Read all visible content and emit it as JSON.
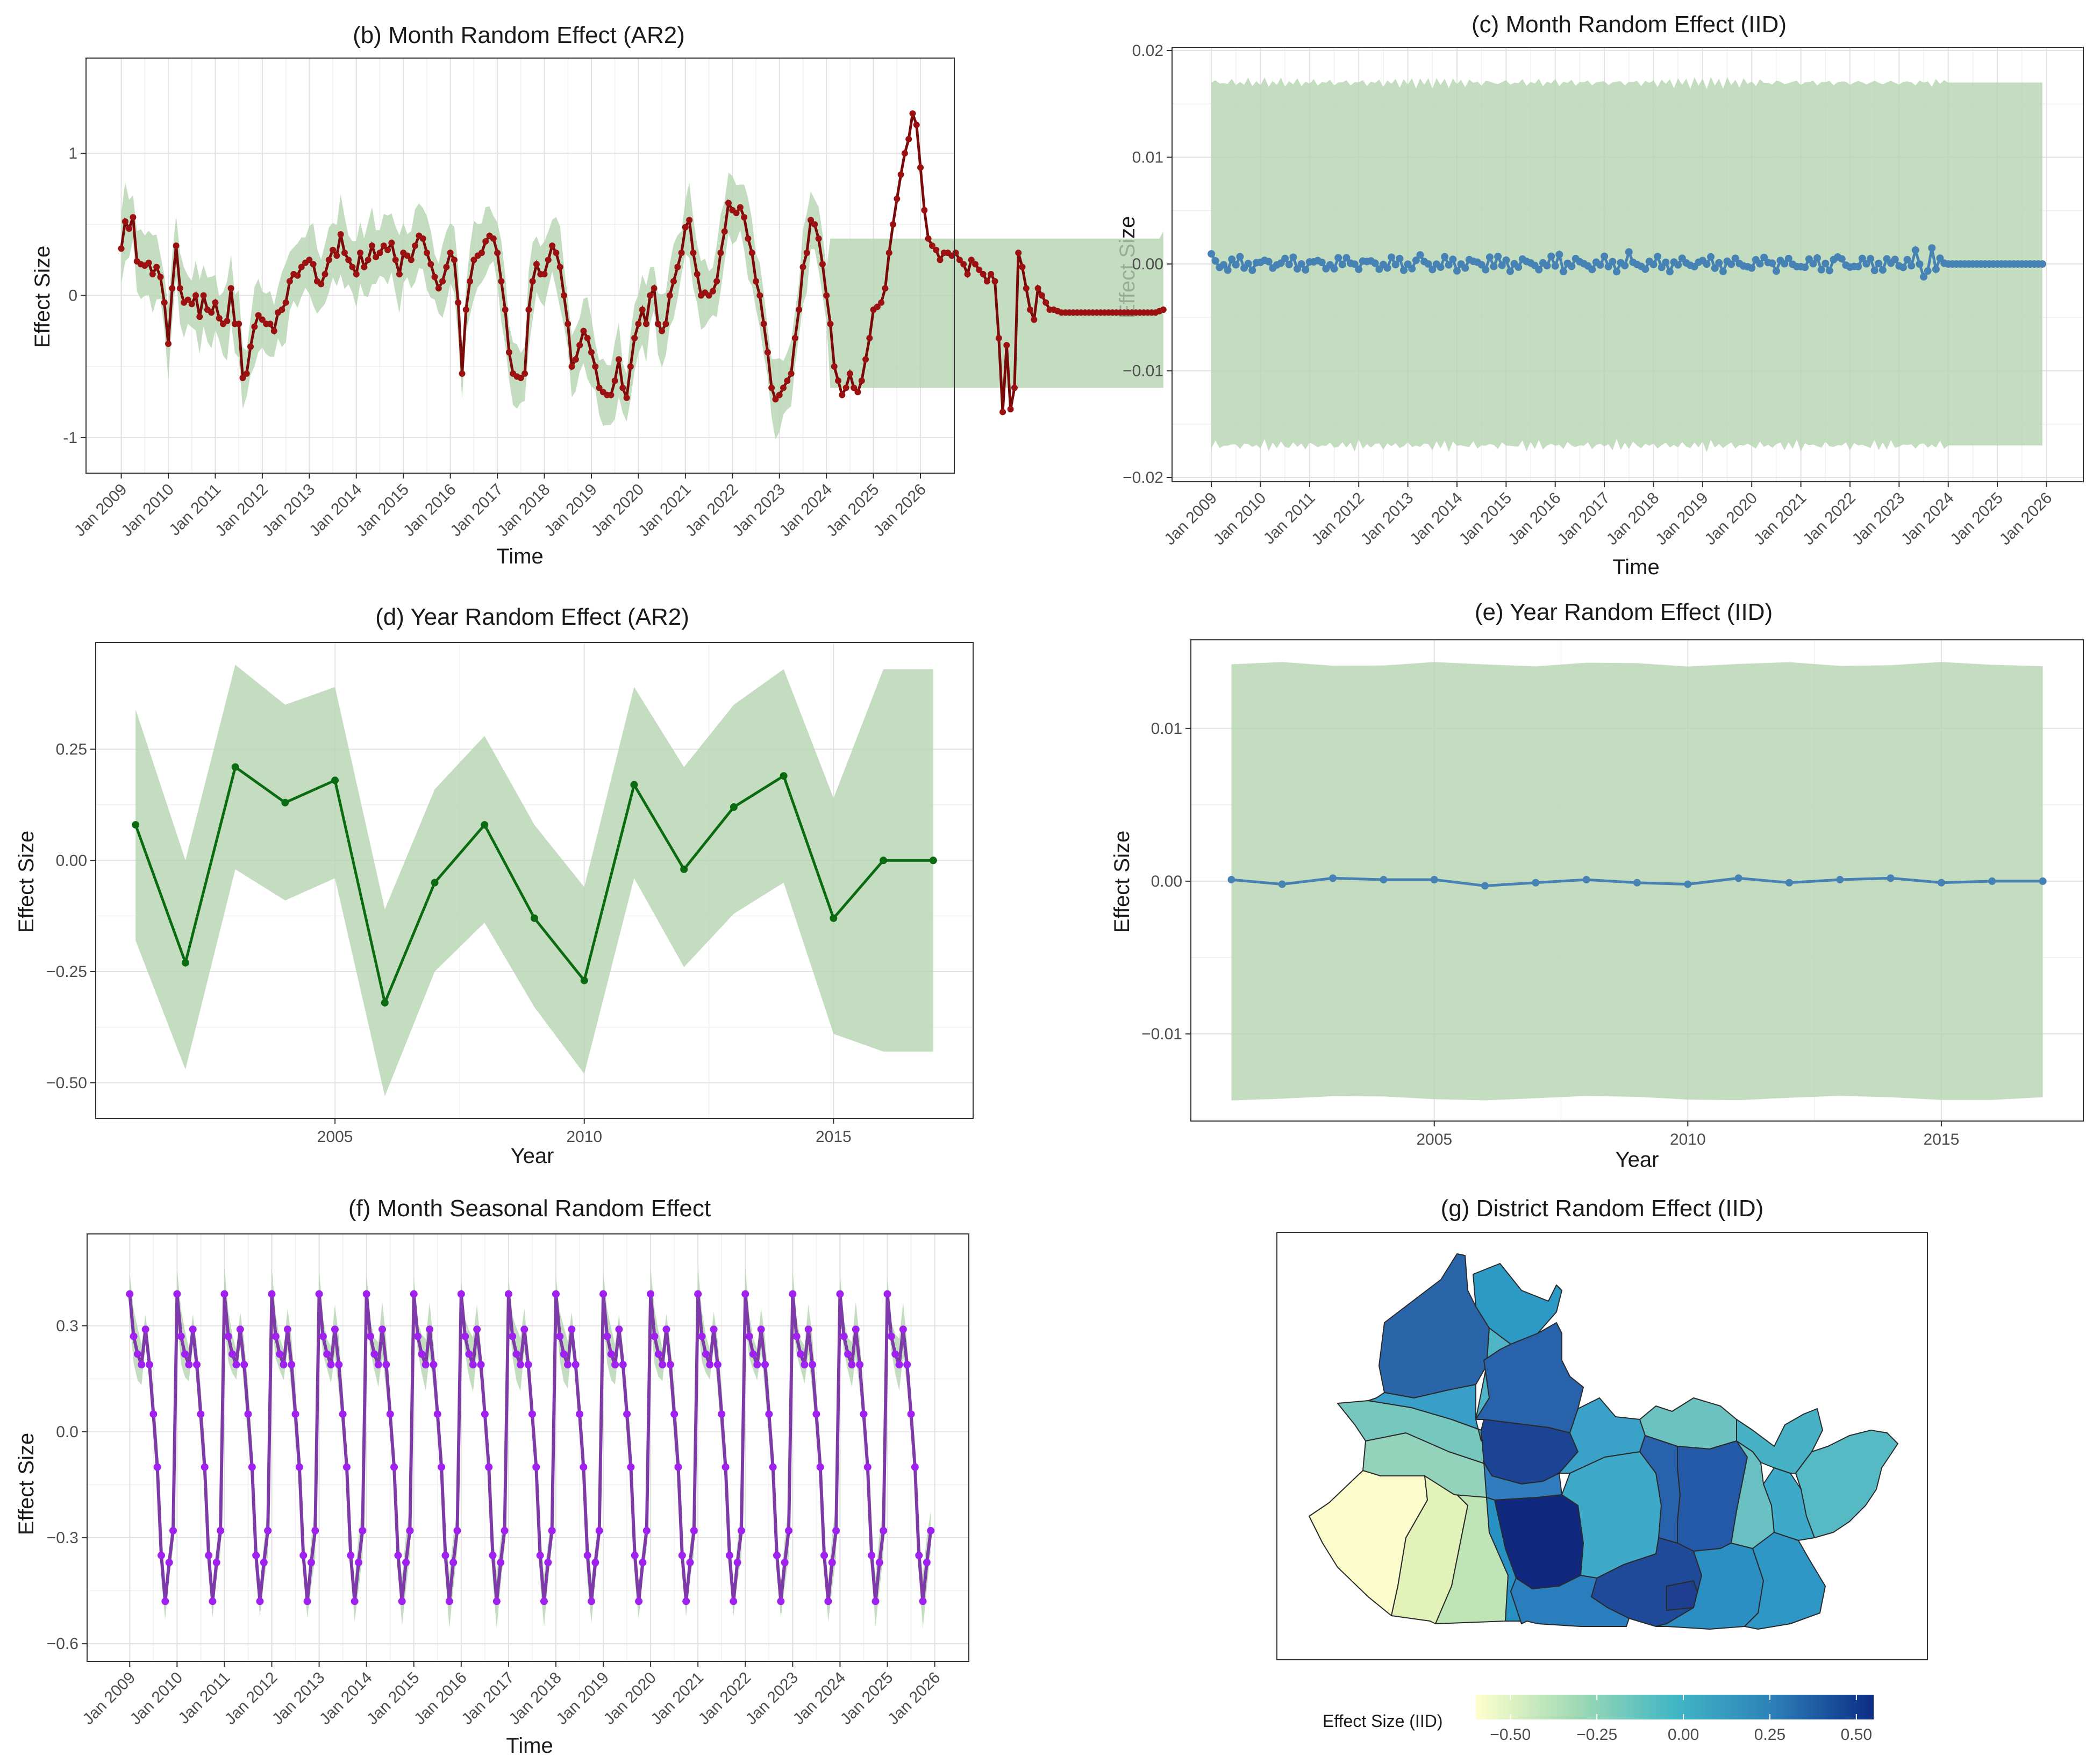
{
  "colors": {
    "band": "#b5d4b0",
    "ar2_month": "#7a0a0a",
    "iid": "#4682b4",
    "ar2_year": "#0b6b10",
    "seasonal": "#a020f0",
    "seasonal_line": "#7d3aa8",
    "map_low": "#ffffcc",
    "map_mid": "#41b6c4",
    "map_high": "#0c2c84"
  },
  "chart_data": [
    {
      "id": "b",
      "type": "line",
      "title": "(b) Month Random Effect (AR2)",
      "xlabel": "Time",
      "ylabel": "Effect Size",
      "x_ticks": [
        "Jan 2009",
        "Jan 2010",
        "Jan 2011",
        "Jan 2012",
        "Jan 2013",
        "Jan 2014",
        "Jan 2015",
        "Jan 2016",
        "Jan 2017",
        "Jan 2018",
        "Jan 2019",
        "Jan 2020",
        "Jan 2021",
        "Jan 2022",
        "Jan 2023",
        "Jan 2024",
        "Jan 2025",
        "Jan 2026"
      ],
      "y_ticks": [
        "-1",
        "0",
        "1"
      ],
      "ylim": [
        -1.25,
        1.67
      ],
      "x_start": 2009.0,
      "x_step": 0.0833333,
      "xlim": [
        2008.25,
        2026.72
      ],
      "values": [
        0.33,
        0.52,
        0.47,
        0.55,
        0.24,
        0.22,
        0.21,
        0.23,
        0.15,
        0.2,
        0.13,
        -0.05,
        -0.34,
        0.05,
        0.35,
        0.05,
        -0.05,
        -0.03,
        -0.06,
        0.0,
        -0.15,
        0.0,
        -0.1,
        -0.12,
        -0.05,
        -0.16,
        -0.2,
        -0.18,
        0.05,
        -0.2,
        -0.2,
        -0.58,
        -0.55,
        -0.36,
        -0.22,
        -0.14,
        -0.17,
        -0.2,
        -0.2,
        -0.25,
        -0.12,
        -0.1,
        -0.05,
        0.1,
        0.15,
        0.14,
        0.2,
        0.23,
        0.25,
        0.22,
        0.1,
        0.08,
        0.15,
        0.25,
        0.32,
        0.28,
        0.43,
        0.3,
        0.25,
        0.2,
        0.15,
        0.3,
        0.2,
        0.25,
        0.35,
        0.27,
        0.3,
        0.35,
        0.32,
        0.37,
        0.25,
        0.15,
        0.3,
        0.28,
        0.25,
        0.35,
        0.42,
        0.4,
        0.3,
        0.22,
        0.13,
        0.05,
        0.1,
        0.2,
        0.3,
        0.25,
        -0.05,
        -0.55,
        -0.1,
        0.1,
        0.25,
        0.28,
        0.3,
        0.38,
        0.42,
        0.4,
        0.3,
        0.1,
        -0.1,
        -0.4,
        -0.55,
        -0.57,
        -0.58,
        -0.55,
        -0.1,
        0.1,
        0.22,
        0.15,
        0.15,
        0.25,
        0.35,
        0.3,
        0.2,
        0.0,
        -0.2,
        -0.5,
        -0.45,
        -0.35,
        -0.25,
        -0.3,
        -0.4,
        -0.5,
        -0.65,
        -0.68,
        -0.7,
        -0.7,
        -0.6,
        -0.45,
        -0.65,
        -0.72,
        -0.5,
        -0.3,
        -0.2,
        -0.1,
        -0.2,
        0.0,
        0.05,
        -0.2,
        -0.25,
        -0.2,
        0.0,
        0.1,
        0.2,
        0.3,
        0.48,
        0.53,
        0.3,
        0.15,
        0.0,
        0.02,
        0.0,
        0.03,
        0.1,
        0.3,
        0.45,
        0.65,
        0.6,
        0.58,
        0.62,
        0.55,
        0.4,
        0.3,
        0.1,
        0.0,
        -0.2,
        -0.4,
        -0.65,
        -0.73,
        -0.7,
        -0.65,
        -0.6,
        -0.55,
        -0.3,
        -0.1,
        0.2,
        0.3,
        0.53,
        0.5,
        0.4,
        0.22,
        0.0,
        -0.2,
        -0.5,
        -0.6,
        -0.7,
        -0.65,
        -0.55,
        -0.65,
        -0.68,
        -0.6,
        -0.45,
        -0.3,
        -0.1,
        -0.08,
        -0.05,
        0.05,
        0.3,
        0.5,
        0.68,
        0.85,
        1.0,
        1.1,
        1.28,
        1.2,
        0.9,
        0.6,
        0.4,
        0.35,
        0.32,
        0.25,
        0.3,
        0.3,
        0.28,
        0.3,
        0.25,
        0.22,
        0.15,
        0.25,
        0.22,
        0.18,
        0.15,
        0.1,
        0.15,
        0.1,
        -0.3,
        -0.82,
        -0.35,
        -0.8,
        -0.65,
        0.3,
        0.2,
        0.05,
        -0.1,
        -0.17,
        0.05,
        0.0,
        -0.05,
        -0.1,
        -0.1,
        -0.11,
        -0.12,
        -0.12,
        -0.12,
        -0.12,
        -0.12,
        -0.12,
        -0.12,
        -0.12,
        -0.12,
        -0.12,
        -0.12,
        -0.12,
        -0.12,
        -0.12,
        -0.12,
        -0.12,
        -0.12,
        -0.12,
        -0.12,
        -0.12,
        -0.12,
        -0.12,
        -0.12,
        -0.12,
        -0.12,
        -0.11,
        -0.1
      ],
      "band_halfwidth_observed": 0.22,
      "forecast_interval": [
        -0.65,
        0.4
      ]
    },
    {
      "id": "c",
      "type": "line",
      "title": "(c) Month Random Effect (IID)",
      "xlabel": "Time",
      "ylabel": "Effect Size",
      "x_ticks": [
        "Jan 2009",
        "Jan 2010",
        "Jan 2011",
        "Jan 2012",
        "Jan 2013",
        "Jan 2014",
        "Jan 2015",
        "Jan 2016",
        "Jan 2017",
        "Jan 2018",
        "Jan 2019",
        "Jan 2020",
        "Jan 2021",
        "Jan 2022",
        "Jan 2023",
        "Jan 2024",
        "Jan 2025",
        "Jan 2026"
      ],
      "y_ticks": [
        "0.02",
        "0.01",
        "0.00",
        "−0.01",
        "−0.02"
      ],
      "ylim": [
        -0.0204,
        0.0203
      ],
      "x_start": 2009.0,
      "x_step": 0.0833333,
      "xlim": [
        2008.2,
        2026.75
      ],
      "values_summary": "random noise around 0 within ±0.001, constant 0 from 2024",
      "band": [
        -0.017,
        0.017
      ]
    },
    {
      "id": "d",
      "type": "line",
      "title": "(d) Year Random Effect (AR2)",
      "xlabel": "Year",
      "ylabel": "Effect Size",
      "x_ticks": [
        "2005",
        "2010",
        "2015"
      ],
      "y_ticks": [
        "0.25",
        "0.00",
        "−0.25",
        "−0.50"
      ],
      "ylim": [
        -0.58,
        0.49
      ],
      "xlim": [
        2000.2,
        2017.8
      ],
      "x": [
        2001,
        2002,
        2003,
        2004,
        2005,
        2006,
        2007,
        2008,
        2009,
        2010,
        2011,
        2012,
        2013,
        2014,
        2015,
        2016,
        2017
      ],
      "values": [
        0.08,
        -0.23,
        0.21,
        0.13,
        0.18,
        -0.32,
        -0.05,
        0.08,
        -0.13,
        -0.27,
        0.17,
        -0.02,
        0.12,
        0.19,
        -0.13,
        0.0,
        0.0
      ],
      "upper": [
        0.34,
        0.0,
        0.44,
        0.35,
        0.39,
        -0.11,
        0.16,
        0.28,
        0.08,
        -0.06,
        0.39,
        0.21,
        0.35,
        0.43,
        0.14,
        0.43,
        0.43
      ],
      "lower": [
        -0.18,
        -0.47,
        -0.02,
        -0.09,
        -0.04,
        -0.53,
        -0.25,
        -0.14,
        -0.33,
        -0.48,
        -0.04,
        -0.24,
        -0.12,
        -0.05,
        -0.39,
        -0.43,
        -0.43
      ]
    },
    {
      "id": "e",
      "type": "line",
      "title": "(e) Year Random Effect (IID)",
      "xlabel": "Year",
      "ylabel": "Effect Size",
      "x_ticks": [
        "2005",
        "2010",
        "2015"
      ],
      "y_ticks": [
        "0.01",
        "0.00",
        "−0.01"
      ],
      "ylim": [
        -0.0157,
        0.0158
      ],
      "xlim": [
        2000.2,
        2017.8
      ],
      "x": [
        2001,
        2002,
        2003,
        2004,
        2005,
        2006,
        2007,
        2008,
        2009,
        2010,
        2011,
        2012,
        2013,
        2014,
        2015,
        2016,
        2017
      ],
      "values": [
        0.0001,
        -0.0002,
        0.0002,
        0.0001,
        0.0001,
        -0.0003,
        -0.0001,
        0.0001,
        -0.0001,
        -0.0002,
        0.0002,
        -0.0001,
        0.0001,
        0.0002,
        -0.0001,
        0.0,
        0.0
      ],
      "band": [
        -0.0142,
        0.0142
      ]
    },
    {
      "id": "f",
      "type": "line",
      "title": "(f) Month Seasonal Random Effect",
      "xlabel": "Time",
      "ylabel": "Effect Size",
      "x_ticks": [
        "Jan 2009",
        "Jan 2010",
        "Jan 2011",
        "Jan 2012",
        "Jan 2013",
        "Jan 2014",
        "Jan 2015",
        "Jan 2016",
        "Jan 2017",
        "Jan 2018",
        "Jan 2019",
        "Jan 2020",
        "Jan 2021",
        "Jan 2022",
        "Jan 2023",
        "Jan 2024",
        "Jan 2025",
        "Jan 2026"
      ],
      "y_ticks": [
        "0.3",
        "0.0",
        "−0.3",
        "−0.6"
      ],
      "ylim": [
        -0.65,
        0.56
      ],
      "xlim": [
        2008.1,
        2026.72
      ],
      "x_start": 2009.0,
      "x_step": 0.0833333,
      "n_points": 204,
      "seasonal_pattern": [
        0.39,
        0.27,
        0.22,
        0.19,
        0.29,
        0.19,
        0.05,
        -0.1,
        -0.35,
        -0.48,
        -0.37,
        -0.28
      ],
      "band_halfwidth": 0.06
    },
    {
      "id": "g",
      "type": "map",
      "title": "(g) District Random Effect (IID)",
      "legend_title": "Effect Size (IID)",
      "legend_ticks": [
        "−0.50",
        "−0.25",
        "0.00",
        "0.25",
        "0.50"
      ],
      "legend_range": [
        -0.6,
        0.55
      ]
    }
  ]
}
